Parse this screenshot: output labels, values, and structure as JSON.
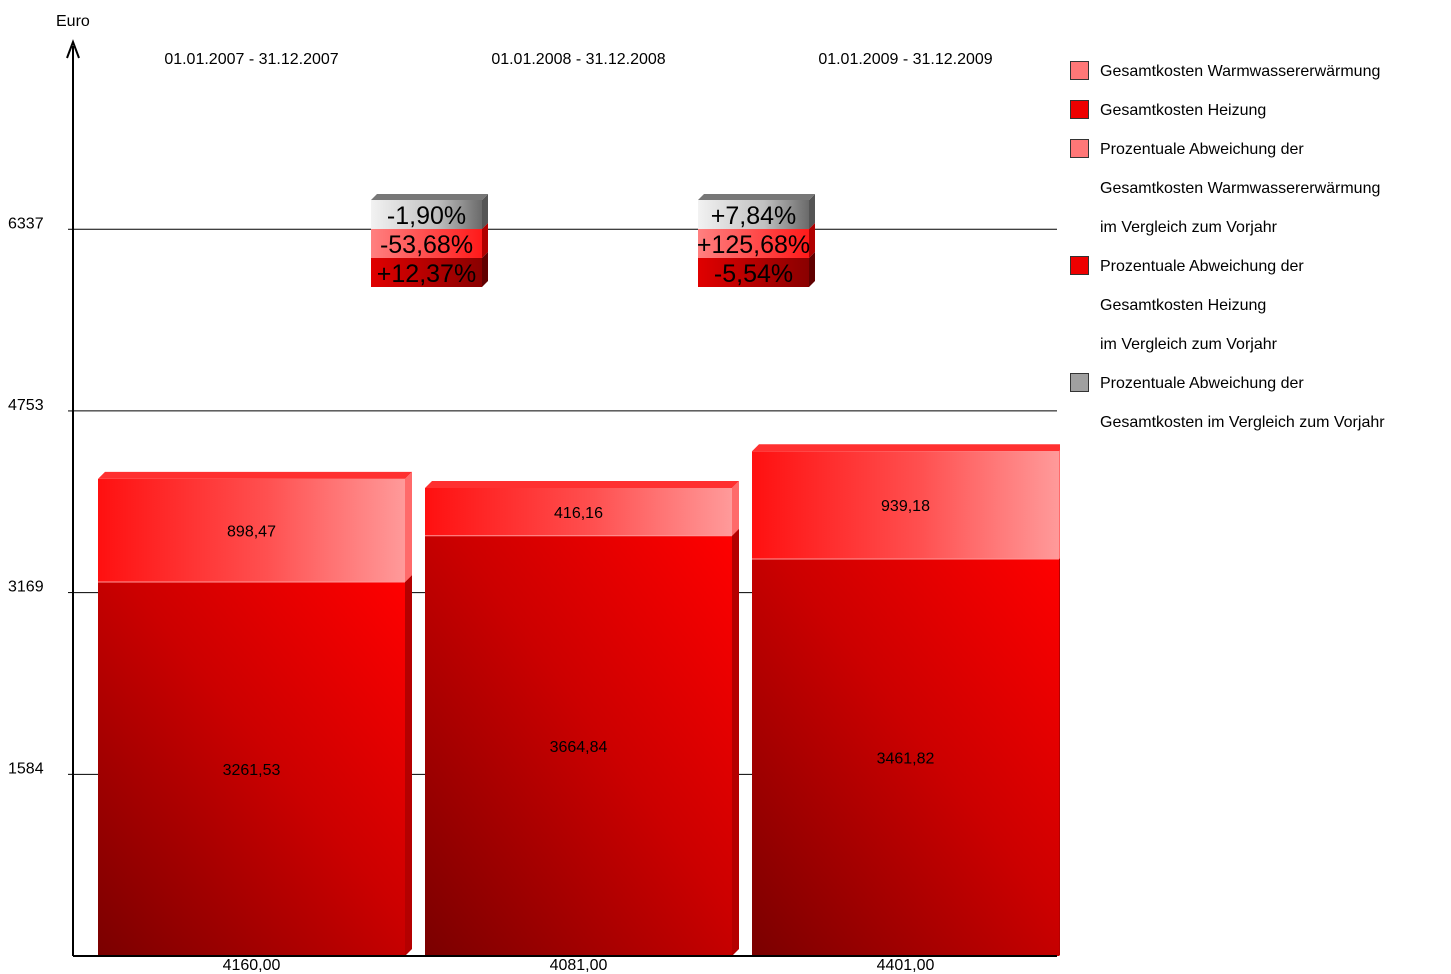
{
  "chart_data": {
    "type": "bar",
    "stacked": true,
    "y_axis_title": "Euro",
    "yticks": [
      1584,
      3169,
      4753,
      6337
    ],
    "ylim": [
      0,
      8200
    ],
    "categories": [
      "01.01.2007 - 31.12.2007",
      "01.01.2008 - 31.12.2008",
      "01.01.2009 - 31.12.2009"
    ],
    "series": [
      {
        "name": "Gesamtkosten Heizung",
        "values": [
          3261.53,
          3664.84,
          3461.82
        ],
        "labels": [
          "3261,53",
          "3664,84",
          "3461,82"
        ]
      },
      {
        "name": "Gesamtkosten Warmwassererwärmung",
        "values": [
          898.47,
          416.16,
          939.18
        ],
        "labels": [
          "898,47",
          "416,16",
          "939,18"
        ]
      }
    ],
    "totals": [
      4160.0,
      4081.0,
      4401.0
    ],
    "total_labels": [
      "4160,00",
      "4081,00",
      "4401,00"
    ],
    "deviations": [
      {
        "between": [
          0,
          1
        ],
        "gesamt": "-1,90%",
        "warmwasser": "-53,68%",
        "heizung": "+12,37%"
      },
      {
        "between": [
          1,
          2
        ],
        "gesamt": "+7,84%",
        "warmwasser": "+125,68%",
        "heizung": "-5,54%"
      }
    ],
    "legend_position": "right",
    "grid": "horizontal",
    "colors": {
      "heizung": "#e00000",
      "warmwasser": "#ff7070",
      "gesamt": "#a0a0a0"
    }
  },
  "legend": [
    {
      "lines": [
        "Gesamtkosten Warmwassererwärmung"
      ],
      "color": "#ff7777"
    },
    {
      "lines": [
        "Gesamtkosten Heizung"
      ],
      "color": "#ee0000"
    },
    {
      "lines": [
        "Prozentuale Abweichung der",
        "Gesamtkosten Warmwassererwärmung",
        "im Vergleich zum Vorjahr"
      ],
      "color": "#ff7777"
    },
    {
      "lines": [
        "Prozentuale Abweichung der",
        "Gesamtkosten Heizung",
        "im Vergleich zum Vorjahr"
      ],
      "color": "#ee0000"
    },
    {
      "lines": [
        "Prozentuale Abweichung der",
        "Gesamtkosten im Vergleich zum Vorjahr"
      ],
      "color": "#a0a0a0"
    }
  ]
}
